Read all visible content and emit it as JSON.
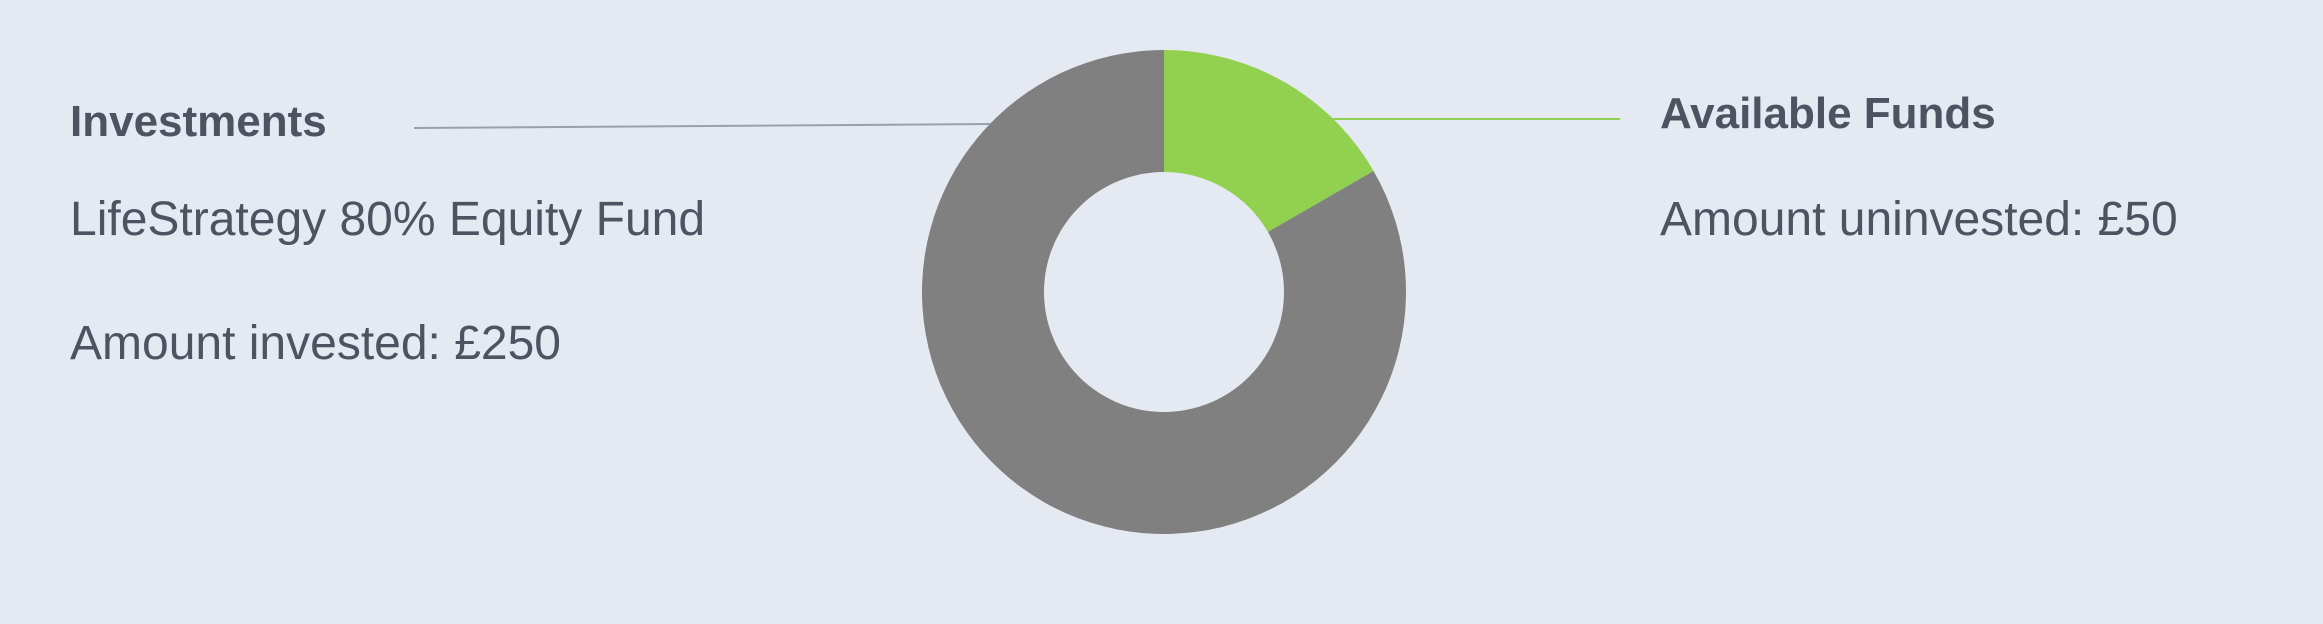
{
  "chart_data": {
    "type": "pie",
    "donut": true,
    "categories": [
      "Investments",
      "Available Funds"
    ],
    "values": [
      250,
      50
    ],
    "colors": [
      "#808080",
      "#92d050"
    ],
    "labels": {
      "investments": {
        "title": "Investments",
        "fund_name": "LifeStrategy 80% Equity Fund",
        "amount_text": "Amount invested: £250"
      },
      "available": {
        "title": "Available Funds",
        "amount_text": "Amount uninvested: £50"
      }
    },
    "leader_line_colors": {
      "investments": "#9aa0ab",
      "available": "#92d050"
    }
  }
}
